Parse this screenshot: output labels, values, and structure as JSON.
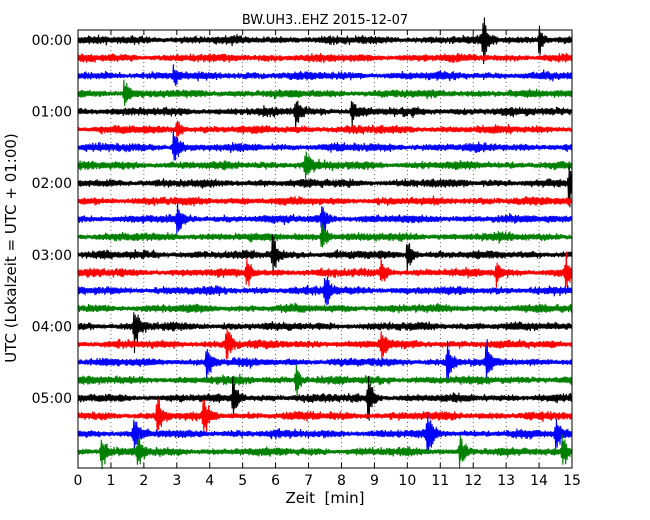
{
  "chart_data": {
    "type": "line",
    "title": "BW.UH3..EHZ 2015-12-07",
    "xlabel": "Zeit  [min]",
    "ylabel": "UTC (Lokalzeit = UTC + 01:00)",
    "xlim": [
      0,
      15
    ],
    "x_ticks": [
      "0",
      "1",
      "2",
      "3",
      "4",
      "5",
      "6",
      "7",
      "8",
      "9",
      "10",
      "11",
      "12",
      "13",
      "14",
      "15"
    ],
    "y_tick_labels": [
      "00:00",
      "01:00",
      "02:00",
      "03:00",
      "04:00",
      "05:00"
    ],
    "traces_per_hour": 4,
    "trace_minutes": 15,
    "grid": true,
    "trace_colors": [
      "#000000",
      "#ff0000",
      "#0000ff",
      "#008000"
    ],
    "series": [
      {
        "start": "00:00",
        "color": "#000000"
      },
      {
        "start": "00:15",
        "color": "#ff0000"
      },
      {
        "start": "00:30",
        "color": "#0000ff"
      },
      {
        "start": "00:45",
        "color": "#008000"
      },
      {
        "start": "01:00",
        "color": "#000000"
      },
      {
        "start": "01:15",
        "color": "#ff0000"
      },
      {
        "start": "01:30",
        "color": "#0000ff"
      },
      {
        "start": "01:45",
        "color": "#008000"
      },
      {
        "start": "02:00",
        "color": "#000000"
      },
      {
        "start": "02:15",
        "color": "#ff0000"
      },
      {
        "start": "02:30",
        "color": "#0000ff"
      },
      {
        "start": "02:45",
        "color": "#008000"
      },
      {
        "start": "03:00",
        "color": "#000000"
      },
      {
        "start": "03:15",
        "color": "#ff0000"
      },
      {
        "start": "03:30",
        "color": "#0000ff"
      },
      {
        "start": "03:45",
        "color": "#008000"
      },
      {
        "start": "04:00",
        "color": "#000000"
      },
      {
        "start": "04:15",
        "color": "#ff0000"
      },
      {
        "start": "04:30",
        "color": "#0000ff"
      },
      {
        "start": "04:45",
        "color": "#008000"
      },
      {
        "start": "05:00",
        "color": "#000000"
      },
      {
        "start": "05:15",
        "color": "#ff0000"
      },
      {
        "start": "05:30",
        "color": "#0000ff"
      },
      {
        "start": "05:45",
        "color": "#008000"
      }
    ],
    "events_minutes": [
      {
        "trace": 0,
        "t": 12.3,
        "amp": 1.4
      },
      {
        "trace": 0,
        "t": 14.0,
        "amp": 1.0
      },
      {
        "trace": 2,
        "t": 2.9,
        "amp": 0.6
      },
      {
        "trace": 3,
        "t": 1.4,
        "amp": 0.9
      },
      {
        "trace": 4,
        "t": 6.6,
        "amp": 1.1
      },
      {
        "trace": 4,
        "t": 8.3,
        "amp": 0.8
      },
      {
        "trace": 5,
        "t": 3.0,
        "amp": 0.7
      },
      {
        "trace": 6,
        "t": 2.9,
        "amp": 1.5
      },
      {
        "trace": 7,
        "t": 6.9,
        "amp": 1.3
      },
      {
        "trace": 8,
        "t": 14.9,
        "amp": 1.5
      },
      {
        "trace": 10,
        "t": 3.0,
        "amp": 0.8
      },
      {
        "trace": 10,
        "t": 7.4,
        "amp": 1.2
      },
      {
        "trace": 11,
        "t": 7.4,
        "amp": 1.0
      },
      {
        "trace": 12,
        "t": 5.9,
        "amp": 1.3
      },
      {
        "trace": 12,
        "t": 10.0,
        "amp": 1.2
      },
      {
        "trace": 13,
        "t": 5.1,
        "amp": 0.9
      },
      {
        "trace": 13,
        "t": 9.2,
        "amp": 0.9
      },
      {
        "trace": 13,
        "t": 12.7,
        "amp": 0.9
      },
      {
        "trace": 13,
        "t": 14.8,
        "amp": 0.9
      },
      {
        "trace": 14,
        "t": 7.5,
        "amp": 1.2
      },
      {
        "trace": 16,
        "t": 1.7,
        "amp": 1.5
      },
      {
        "trace": 17,
        "t": 4.5,
        "amp": 1.2
      },
      {
        "trace": 17,
        "t": 9.2,
        "amp": 1.0
      },
      {
        "trace": 18,
        "t": 3.9,
        "amp": 1.2
      },
      {
        "trace": 18,
        "t": 11.2,
        "amp": 1.4
      },
      {
        "trace": 18,
        "t": 12.4,
        "amp": 1.2
      },
      {
        "trace": 19,
        "t": 6.6,
        "amp": 1.0
      },
      {
        "trace": 20,
        "t": 4.7,
        "amp": 1.4
      },
      {
        "trace": 20,
        "t": 8.8,
        "amp": 1.6
      },
      {
        "trace": 21,
        "t": 2.4,
        "amp": 1.3
      },
      {
        "trace": 21,
        "t": 3.8,
        "amp": 1.3
      },
      {
        "trace": 22,
        "t": 1.7,
        "amp": 1.2
      },
      {
        "trace": 22,
        "t": 10.6,
        "amp": 1.6
      },
      {
        "trace": 22,
        "t": 14.5,
        "amp": 1.2
      },
      {
        "trace": 23,
        "t": 0.7,
        "amp": 1.2
      },
      {
        "trace": 23,
        "t": 1.8,
        "amp": 1.0
      },
      {
        "trace": 23,
        "t": 11.6,
        "amp": 1.0
      },
      {
        "trace": 23,
        "t": 14.7,
        "amp": 1.1
      }
    ]
  }
}
